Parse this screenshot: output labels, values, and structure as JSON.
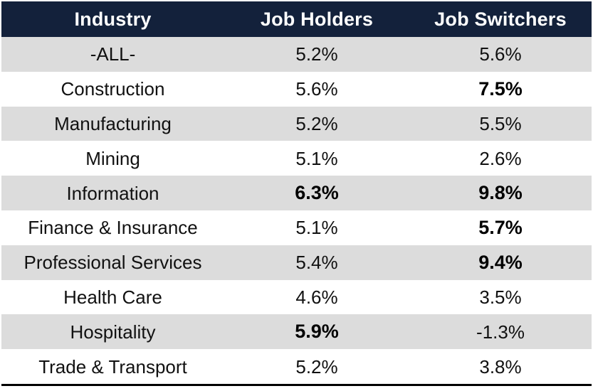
{
  "table": {
    "headers": [
      "Industry",
      "Job Holders",
      "Job Switchers"
    ],
    "rows": [
      {
        "industry": "-ALL-",
        "holders": "5.2%",
        "switchers": "5.6%",
        "holders_bold": false,
        "switchers_bold": false
      },
      {
        "industry": "Construction",
        "holders": "5.6%",
        "switchers": "7.5%",
        "holders_bold": false,
        "switchers_bold": true
      },
      {
        "industry": "Manufacturing",
        "holders": "5.2%",
        "switchers": "5.5%",
        "holders_bold": false,
        "switchers_bold": false
      },
      {
        "industry": "Mining",
        "holders": "5.1%",
        "switchers": "2.6%",
        "holders_bold": false,
        "switchers_bold": false
      },
      {
        "industry": "Information",
        "holders": "6.3%",
        "switchers": "9.8%",
        "holders_bold": true,
        "switchers_bold": true
      },
      {
        "industry": "Finance & Insurance",
        "holders": "5.1%",
        "switchers": "5.7%",
        "holders_bold": false,
        "switchers_bold": true
      },
      {
        "industry": "Professional Services",
        "holders": "5.4%",
        "switchers": "9.4%",
        "holders_bold": false,
        "switchers_bold": true
      },
      {
        "industry": "Health Care",
        "holders": "4.6%",
        "switchers": "3.5%",
        "holders_bold": false,
        "switchers_bold": false
      },
      {
        "industry": "Hospitality",
        "holders": "5.9%",
        "switchers": "-1.3%",
        "holders_bold": true,
        "switchers_bold": false
      },
      {
        "industry": "Trade & Transport",
        "holders": "5.2%",
        "switchers": "3.8%",
        "holders_bold": false,
        "switchers_bold": false
      }
    ]
  },
  "colors": {
    "header_bg": "#13213b",
    "header_text": "#ffffff",
    "stripe": "#dcdcdc",
    "text": "#111111"
  }
}
